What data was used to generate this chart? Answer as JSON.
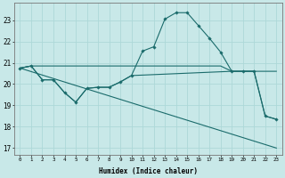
{
  "xlabel": "Humidex (Indice chaleur)",
  "xlim": [
    -0.5,
    23.5
  ],
  "ylim": [
    16.7,
    23.8
  ],
  "yticks": [
    17,
    18,
    19,
    20,
    21,
    22,
    23
  ],
  "xticks": [
    0,
    1,
    2,
    3,
    4,
    5,
    6,
    7,
    8,
    9,
    10,
    11,
    12,
    13,
    14,
    15,
    16,
    17,
    18,
    19,
    20,
    21,
    22,
    23
  ],
  "bg_color": "#c8e8e8",
  "line_color": "#1a6b6b",
  "grid_color": "#add8d8",
  "line1": {
    "x": [
      0,
      1,
      2,
      3,
      4,
      5,
      6,
      7,
      8,
      9,
      10,
      11,
      12,
      13,
      14,
      15,
      16,
      17,
      18,
      19,
      20,
      21,
      22,
      23
    ],
    "y": [
      20.75,
      20.85,
      20.85,
      20.85,
      20.85,
      20.85,
      20.85,
      20.85,
      20.85,
      20.85,
      20.85,
      20.85,
      20.85,
      20.85,
      20.85,
      20.85,
      20.85,
      20.85,
      20.85,
      20.6,
      20.6,
      20.6,
      20.6,
      20.6
    ]
  },
  "line2_marked": {
    "x": [
      0,
      1,
      2,
      3,
      4,
      5,
      6,
      7,
      8,
      9,
      10,
      11,
      12,
      13,
      14,
      15,
      16,
      17,
      18,
      19,
      20,
      21,
      22,
      23
    ],
    "y": [
      20.75,
      20.85,
      20.2,
      20.2,
      19.6,
      19.15,
      19.8,
      19.85,
      19.85,
      20.1,
      20.4,
      21.55,
      21.75,
      23.05,
      23.35,
      23.35,
      22.75,
      22.15,
      21.5,
      20.6,
      20.6,
      20.6,
      18.5,
      18.35
    ]
  },
  "line3_diag": {
    "x": [
      0,
      23
    ],
    "y": [
      20.75,
      17.0
    ]
  },
  "line4": {
    "x": [
      0,
      1,
      2,
      3,
      4,
      5,
      6,
      7,
      8,
      9,
      10,
      19,
      20,
      21,
      22,
      23
    ],
    "y": [
      20.75,
      20.85,
      20.2,
      20.2,
      19.6,
      19.15,
      19.8,
      19.85,
      19.85,
      20.1,
      20.4,
      20.6,
      20.6,
      20.6,
      18.5,
      18.35
    ]
  }
}
